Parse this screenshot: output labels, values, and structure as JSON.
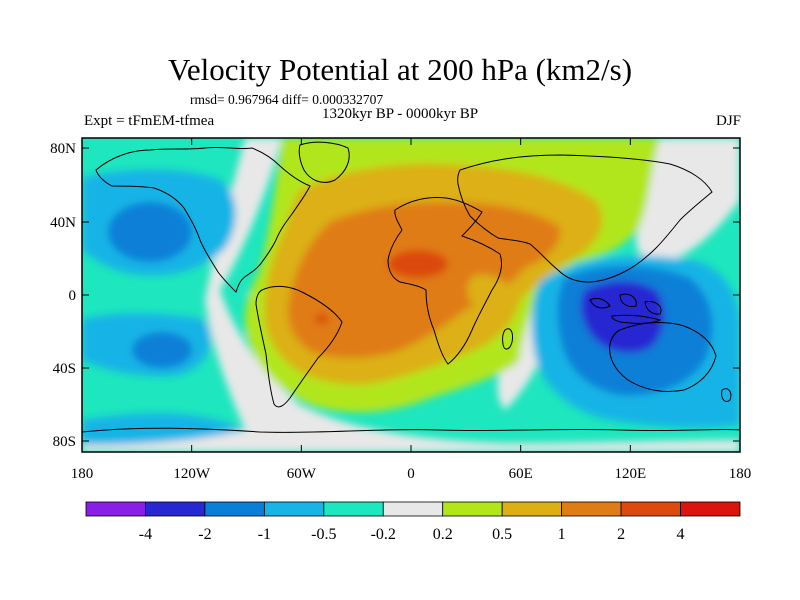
{
  "plot": {
    "title": "Velocity Potential at 200 hPa (km2/s)",
    "stats": "rmsd= 0.967964 diff= 0.000332707",
    "period": "1320kyr BP - 0000kyr BP",
    "experiment": "Expt = tFmEM-tfmea",
    "season": "DJF"
  },
  "axes": {
    "lon_ticks": [
      "180",
      "120W",
      "60W",
      "0",
      "60E",
      "120E",
      "180"
    ],
    "lat_ticks": [
      "80N",
      "40N",
      "0",
      "40S",
      "80S"
    ]
  },
  "colorbar": {
    "labels": [
      "-4",
      "-2",
      "-1",
      "-0.5",
      "-0.2",
      "0.2",
      "0.5",
      "1",
      "2",
      "4"
    ],
    "colors": [
      "#8a1ee6",
      "#2828d2",
      "#0a7fd7",
      "#17b4e6",
      "#1ee6be",
      "#e8e8e8",
      "#b2e61a",
      "#dcb014",
      "#e07c14",
      "#dc4a0e",
      "#dc140e"
    ]
  }
}
